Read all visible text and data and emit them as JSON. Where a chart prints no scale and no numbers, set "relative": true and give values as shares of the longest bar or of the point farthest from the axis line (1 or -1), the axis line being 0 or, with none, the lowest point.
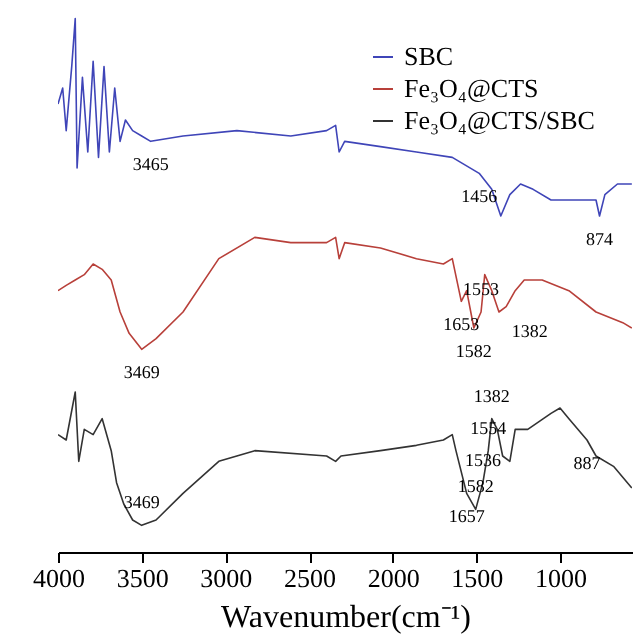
{
  "chart_data": {
    "type": "line",
    "relative": true,
    "xlabel": "Wavenumber(cm⁻¹)",
    "xlim": [
      4000,
      570
    ],
    "xticks": [
      4000,
      3500,
      3000,
      2500,
      2000,
      1500,
      1000
    ],
    "grid": false,
    "legend": "top right",
    "series": [
      {
        "name": "SBC",
        "color": "#3f45b8",
        "x": [
          4000,
          3972,
          3951,
          3918,
          3897,
          3886,
          3854,
          3822,
          3790,
          3758,
          3725,
          3693,
          3661,
          3629,
          3597,
          3554,
          3500,
          3446,
          3253,
          2931,
          2609,
          2395,
          2341,
          2320,
          2287,
          2073,
          1858,
          1644,
          1483,
          1408,
          1354,
          1300,
          1236,
          1161,
          1054,
          947,
          839,
          785,
          764,
          732,
          657,
          571
        ],
        "values": [
          0.84,
          0.87,
          0.79,
          0.91,
          1,
          0.72,
          0.89,
          0.75,
          0.92,
          0.74,
          0.91,
          0.75,
          0.87,
          0.77,
          0.81,
          0.79,
          0.78,
          0.77,
          0.78,
          0.79,
          0.78,
          0.79,
          0.8,
          0.75,
          0.77,
          0.76,
          0.75,
          0.74,
          0.71,
          0.68,
          0.63,
          0.67,
          0.69,
          0.68,
          0.66,
          0.66,
          0.66,
          0.66,
          0.63,
          0.67,
          0.69,
          0.69
        ]
      },
      {
        "name": "Fe₃O₄@CTS",
        "color": "#b8403a",
        "x": [
          4000,
          3951,
          3897,
          3843,
          3790,
          3736,
          3682,
          3629,
          3575,
          3500,
          3414,
          3253,
          3039,
          2824,
          2609,
          2395,
          2341,
          2320,
          2287,
          2073,
          1858,
          1697,
          1644,
          1590,
          1558,
          1515,
          1472,
          1450,
          1408,
          1365,
          1322,
          1268,
          1214,
          1107,
          947,
          785,
          625,
          571
        ],
        "values": [
          0.49,
          0.5,
          0.51,
          0.52,
          0.54,
          0.53,
          0.51,
          0.45,
          0.41,
          0.38,
          0.4,
          0.45,
          0.55,
          0.59,
          0.58,
          0.58,
          0.59,
          0.55,
          0.58,
          0.57,
          0.55,
          0.54,
          0.55,
          0.47,
          0.49,
          0.42,
          0.45,
          0.52,
          0.49,
          0.45,
          0.46,
          0.49,
          0.51,
          0.51,
          0.49,
          0.45,
          0.43,
          0.42
        ]
      },
      {
        "name": "Fe₃O₄@CTS/SBC",
        "color": "#333333",
        "x": [
          4000,
          3951,
          3897,
          3876,
          3843,
          3790,
          3736,
          3682,
          3650,
          3607,
          3554,
          3500,
          3414,
          3253,
          3039,
          2824,
          2395,
          2341,
          2309,
          2073,
          1858,
          1697,
          1644,
          1622,
          1558,
          1504,
          1461,
          1429,
          1408,
          1375,
          1343,
          1300,
          1268,
          1193,
          1054,
          1000,
          947,
          839,
          785,
          678,
          571
        ],
        "values": [
          0.22,
          0.21,
          0.3,
          0.17,
          0.23,
          0.22,
          0.25,
          0.19,
          0.13,
          0.09,
          0.06,
          0.05,
          0.06,
          0.11,
          0.17,
          0.19,
          0.18,
          0.17,
          0.18,
          0.19,
          0.2,
          0.21,
          0.22,
          0.19,
          0.11,
          0.08,
          0.13,
          0.19,
          0.25,
          0.23,
          0.18,
          0.17,
          0.23,
          0.23,
          0.26,
          0.27,
          0.25,
          0.21,
          0.18,
          0.16,
          0.12
        ]
      }
    ],
    "annotations": [
      {
        "text": "3465",
        "x": 3446,
        "y": 0.77
      },
      {
        "text": "1456",
        "x": 1483,
        "y": 0.71
      },
      {
        "text": "874",
        "x": 764,
        "y": 0.63
      },
      {
        "text": "3469",
        "x": 3500,
        "y": 0.38
      },
      {
        "text": "1653",
        "x": 1590,
        "y": 0.47
      },
      {
        "text": "1582",
        "x": 1515,
        "y": 0.42
      },
      {
        "text": "1553",
        "x": 1472,
        "y": 0.45
      },
      {
        "text": "1382",
        "x": 1365,
        "y": 0.45
      },
      {
        "text": "3469",
        "x": 3500,
        "y": 0.05
      },
      {
        "text": "1657",
        "x": 1558,
        "y": 0.11
      },
      {
        "text": "1536",
        "x": 1461,
        "y": 0.13
      },
      {
        "text": "1554",
        "x": 1429,
        "y": 0.19
      },
      {
        "text": "1582",
        "x": 1504,
        "y": 0.08
      },
      {
        "text": "1382",
        "x": 1408,
        "y": 0.25
      },
      {
        "text": "887",
        "x": 839,
        "y": 0.21
      }
    ]
  }
}
